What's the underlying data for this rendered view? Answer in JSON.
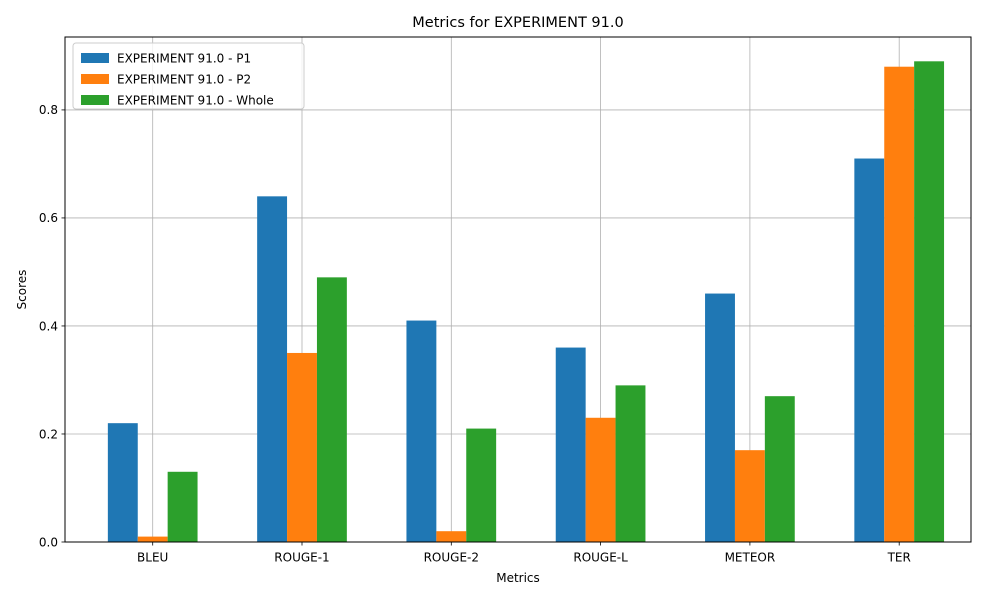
{
  "chart_data": {
    "type": "bar",
    "title": "Metrics for EXPERIMENT 91.0",
    "xlabel": "Metrics",
    "ylabel": "Scores",
    "categories": [
      "BLEU",
      "ROUGE-1",
      "ROUGE-2",
      "ROUGE-L",
      "METEOR",
      "TER"
    ],
    "series": [
      {
        "name": "EXPERIMENT 91.0 - P1",
        "color": "#1f77b4",
        "values": [
          0.22,
          0.64,
          0.41,
          0.36,
          0.46,
          0.71
        ]
      },
      {
        "name": "EXPERIMENT 91.0 - P2",
        "color": "#ff7f0e",
        "values": [
          0.01,
          0.35,
          0.02,
          0.23,
          0.17,
          0.88
        ]
      },
      {
        "name": "EXPERIMENT 91.0 - Whole",
        "color": "#2ca02c",
        "values": [
          0.13,
          0.49,
          0.21,
          0.29,
          0.27,
          0.89
        ]
      }
    ],
    "ylim": [
      0,
      0.935
    ],
    "yticks": [
      "0.0",
      "0.2",
      "0.4",
      "0.6",
      "0.8"
    ],
    "grid": true,
    "legend_position": "top-left"
  }
}
